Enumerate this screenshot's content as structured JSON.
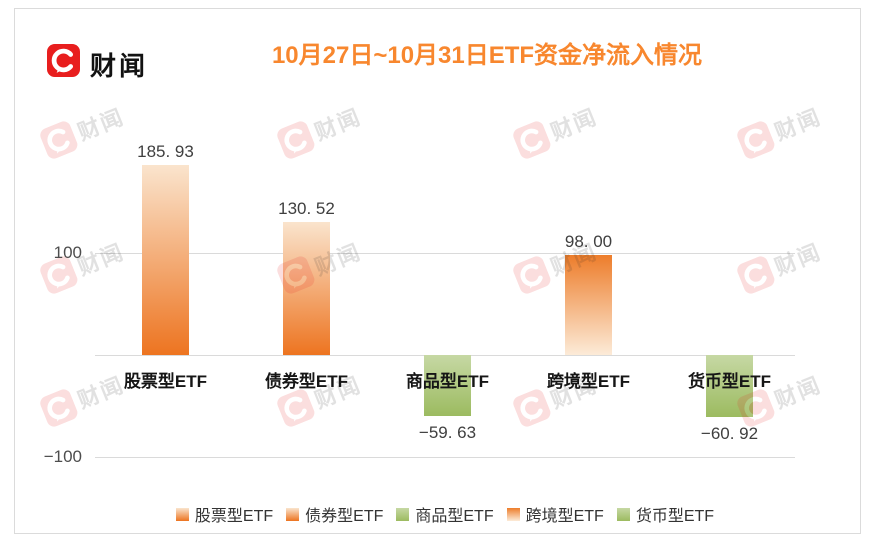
{
  "header": {
    "brand": "财闻",
    "title": "10月27日~10月31日ETF资金净流入情况"
  },
  "watermark": {
    "text": "财闻"
  },
  "colors": {
    "logo_red": "#E81E1E",
    "title_orange": "#F8872E",
    "grid_line": "#DADADA",
    "orange_bar_light": "#FAE4CD",
    "orange_bar_dark": "#ED7420",
    "green_bar_light": "#C6D8A4",
    "green_bar_dark": "#9CBB60"
  },
  "chart_data": {
    "type": "bar",
    "title": "10月27日~10月31日ETF资金净流入情况",
    "categories": [
      "股票型ETF",
      "债券型ETF",
      "商品型ETF",
      "跨境型ETF",
      "货币型ETF"
    ],
    "values": [
      185.93,
      130.52,
      -59.63,
      98.0,
      -60.92
    ],
    "value_labels": [
      "185. 93",
      "130. 52",
      "−59. 63",
      "98. 00",
      "−60. 92"
    ],
    "xlabel": "",
    "ylabel": "",
    "ylim": [
      -100,
      200
    ],
    "grid": true,
    "yticks": [
      {
        "value": 100,
        "label": "100"
      },
      {
        "value": 0,
        "label": ""
      },
      {
        "value": -100,
        "label": "−100"
      }
    ],
    "legend": [
      "股票型ETF",
      "债券型ETF",
      "商品型ETF",
      "跨境型ETF",
      "货币型ETF"
    ],
    "legend_position": "bottom",
    "bar_gradients": [
      {
        "top": "#FAE4CD",
        "bottom": "#ED7420"
      },
      {
        "top": "#FAE4CD",
        "bottom": "#ED7420"
      },
      {
        "top": "#C6D8A4",
        "bottom": "#9CBB60"
      },
      {
        "top": "#ED7D2B",
        "bottom": "#FCEBD8"
      },
      {
        "top": "#C6D8A4",
        "bottom": "#9CBB60"
      }
    ]
  }
}
